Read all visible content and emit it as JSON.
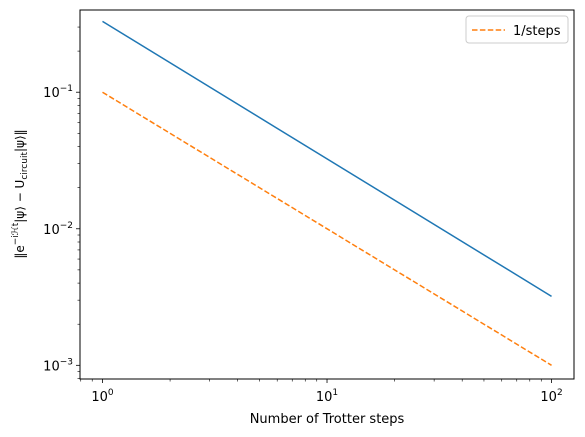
{
  "chart_data": {
    "type": "line",
    "xscale": "log",
    "yscale": "log",
    "xlim": [
      0.794,
      125.9
    ],
    "ylim": [
      0.000794,
      0.4
    ],
    "xlabel": "Number of Trotter steps",
    "ylabel": "‖e^(−iℋt)|ψ⟩ − U_circuit|ψ⟩‖",
    "x_ticks": [
      {
        "value": 1,
        "base": "10",
        "exp": "0"
      },
      {
        "value": 10,
        "base": "10",
        "exp": "1"
      },
      {
        "value": 100,
        "base": "10",
        "exp": "2"
      }
    ],
    "y_ticks": [
      {
        "value": 0.001,
        "base": "10",
        "exp": "−3"
      },
      {
        "value": 0.01,
        "base": "10",
        "exp": "−2"
      },
      {
        "value": 0.1,
        "base": "10",
        "exp": "−1"
      }
    ],
    "series": [
      {
        "name": "",
        "color": "#1f77b4",
        "dash": "solid",
        "x": [
          1,
          100
        ],
        "y": [
          0.33,
          0.0032
        ]
      },
      {
        "name": "1/steps",
        "color": "#ff7f0e",
        "dash": "dashed",
        "x": [
          1,
          100
        ],
        "y": [
          0.1,
          0.001
        ]
      }
    ],
    "legend": {
      "position": "top-right",
      "entries": [
        "1/steps"
      ]
    },
    "grid": false
  }
}
